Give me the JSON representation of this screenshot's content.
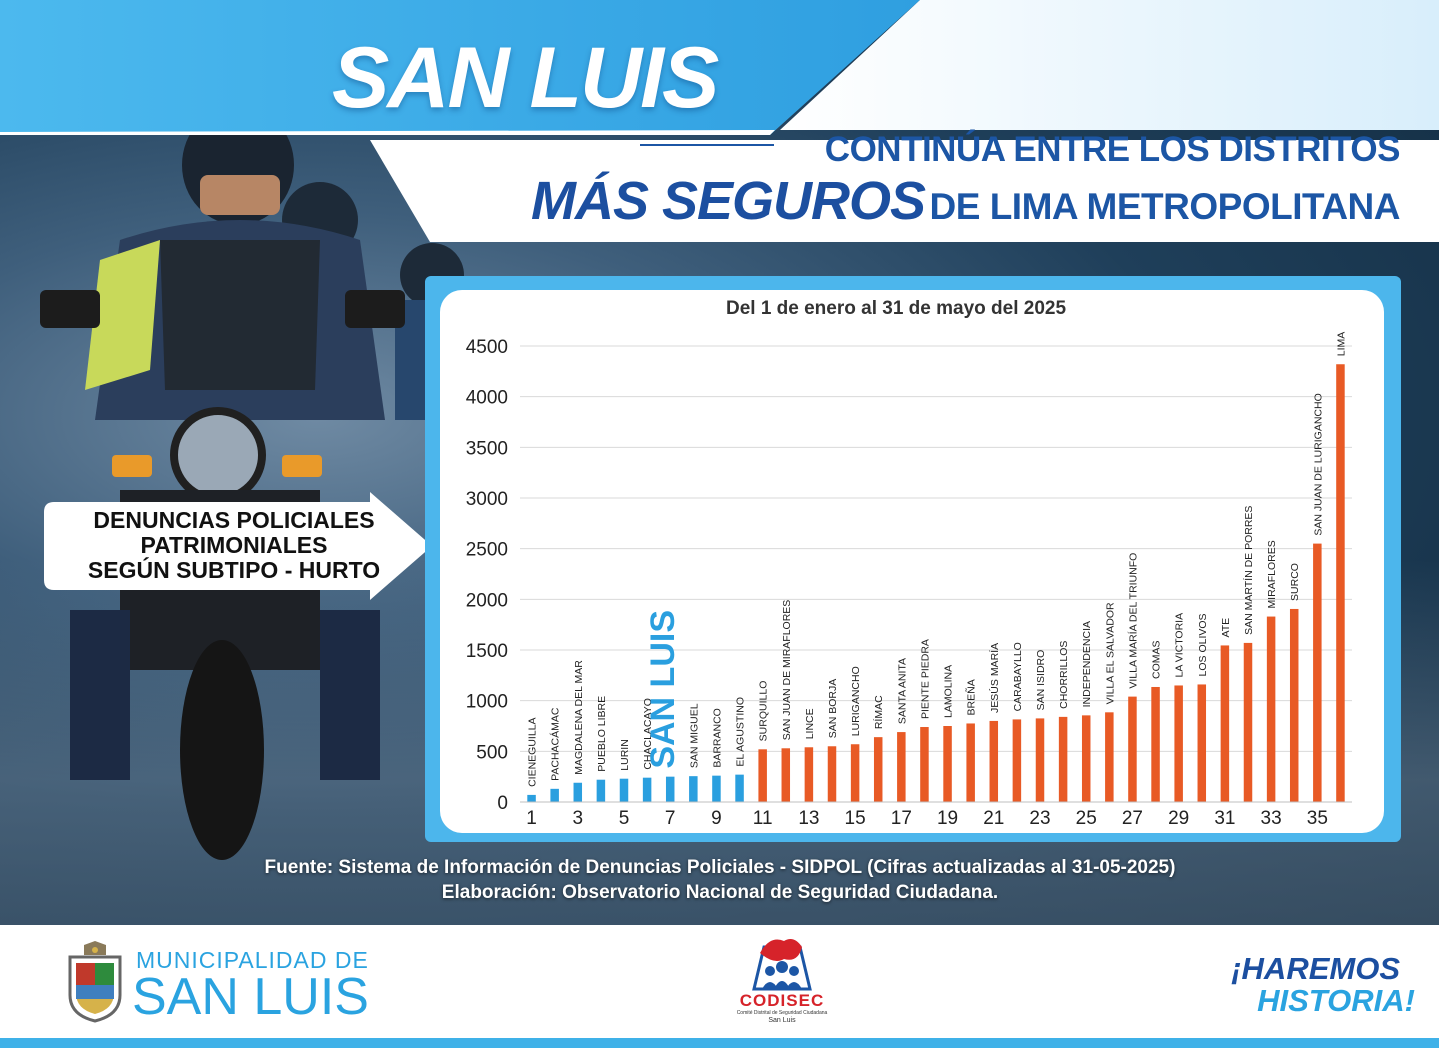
{
  "header": {
    "title": "SAN LUIS",
    "headline_line1": "CONTINÚA ENTRE LOS DISTRITOS",
    "headline_emphasis": "MÁS SEGUROS",
    "headline_rest": "DE LIMA METROPOLITANA"
  },
  "callout": {
    "line1": "DENUNCIAS POLICIALES",
    "line2": "PATRIMONIALES",
    "line3": "SEGÚN SUBTIPO - HURTO"
  },
  "chart_data": {
    "type": "bar",
    "title": "Del 1 de enero al 31 de mayo del 2025",
    "xlabel": "",
    "ylabel": "",
    "ylim": [
      0,
      4500
    ],
    "y_ticks": [
      0,
      500,
      1000,
      1500,
      2000,
      2500,
      3000,
      3500,
      4000,
      4500
    ],
    "x_tick_labels": [
      "1",
      "3",
      "5",
      "7",
      "9",
      "11",
      "13",
      "15",
      "17",
      "19",
      "21",
      "23",
      "25",
      "27",
      "29",
      "31",
      "33",
      "35"
    ],
    "grid": true,
    "highlight": "SAN LUIS",
    "colors": {
      "safe": "#2a9fdf",
      "rest": "#e85a25",
      "highlight_label": "#2a9fdf"
    },
    "categories": [
      "CIENEGUILLA",
      "PACHACÁMAC",
      "MAGDALENA DEL MAR",
      "PUEBLO LIBRE",
      "LURIN",
      "CHACLACAYO",
      "SAN LUIS",
      "SAN MIGUEL",
      "BARRANCO",
      "EL AGUSTINO",
      "SURQUILLO",
      "SAN JUAN DE MIRAFLORES",
      "LINCE",
      "SAN BORJA",
      "LURIGANCHO",
      "RÍMAC",
      "SANTA ANITA",
      "PIENTE PIEDRA",
      "LAMOLINA",
      "BREÑA",
      "JESÚS MARÍA",
      "CARABAYLLO",
      "SAN ISIDRO",
      "CHORRILLOS",
      "INDEPENDENCIA",
      "VILLA EL SALVADOR",
      "VILLA MARÍA DEL TRIUNFO",
      "COMAS",
      "LA VICTORIA",
      "LOS OLIVOS",
      "ATE",
      "SAN MARTÍN DE PORRES",
      "MIRAFLORES",
      "SURCO",
      "SAN JUAN DE LURIGANCHO",
      "LIMA"
    ],
    "values": [
      70,
      130,
      190,
      220,
      230,
      240,
      250,
      255,
      260,
      270,
      520,
      530,
      540,
      550,
      570,
      640,
      690,
      740,
      750,
      775,
      800,
      815,
      825,
      840,
      855,
      885,
      1040,
      1135,
      1150,
      1160,
      1545,
      1570,
      1830,
      1905,
      2550,
      4320
    ],
    "safe_count": 10
  },
  "source": {
    "line1": "Fuente: Sistema de Información de Denuncias Policiales - SIDPOL  (Cifras actualizadas al 31-05-2025)",
    "line2": "Elaboración: Observatorio Nacional de Seguridad Ciudadana."
  },
  "footer": {
    "muni_line1": "MUNICIPALIDAD DE",
    "muni_line2": "SAN LUIS",
    "codisec_name": "CODISEC",
    "codisec_sub1": "Comité Distrital de Seguridad Ciudadana",
    "codisec_sub2": "San Luis",
    "slogan_line1": "¡HAREMOS",
    "slogan_line2": "HISTORIA!"
  }
}
